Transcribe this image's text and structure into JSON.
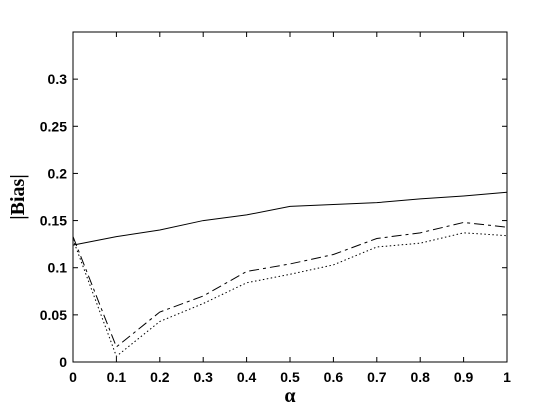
{
  "chart_data": {
    "type": "line",
    "xlabel": "α",
    "ylabel": "|Bias|",
    "x": [
      0,
      0.1,
      0.2,
      0.3,
      0.4,
      0.5,
      0.6,
      0.7,
      0.8,
      0.9,
      1
    ],
    "series": [
      {
        "color": "#000000",
        "dash": "solid",
        "values": [
          0.124,
          0.133,
          0.14,
          0.15,
          0.156,
          0.165,
          0.167,
          0.169,
          0.173,
          0.176,
          0.18
        ]
      },
      {
        "color": "#000000",
        "dash": "dashed",
        "values": [
          0.133,
          0.016,
          0.053,
          0.07,
          0.096,
          0.104,
          0.114,
          0.131,
          0.137,
          0.148,
          0.143
        ]
      },
      {
        "color": "#000000",
        "dash": "dotted",
        "values": [
          0.13,
          0.006,
          0.043,
          0.062,
          0.084,
          0.093,
          0.103,
          0.122,
          0.126,
          0.137,
          0.134
        ]
      }
    ],
    "xlim": [
      0,
      1
    ],
    "xticks": [
      0,
      0.1,
      0.2,
      0.3,
      0.4,
      0.5,
      0.6,
      0.7,
      0.8,
      0.9,
      1
    ],
    "ylim": [
      0,
      0.35
    ],
    "yticks": [
      0,
      0.05,
      0.1,
      0.15,
      0.2,
      0.25,
      0.3
    ],
    "grid": false
  }
}
